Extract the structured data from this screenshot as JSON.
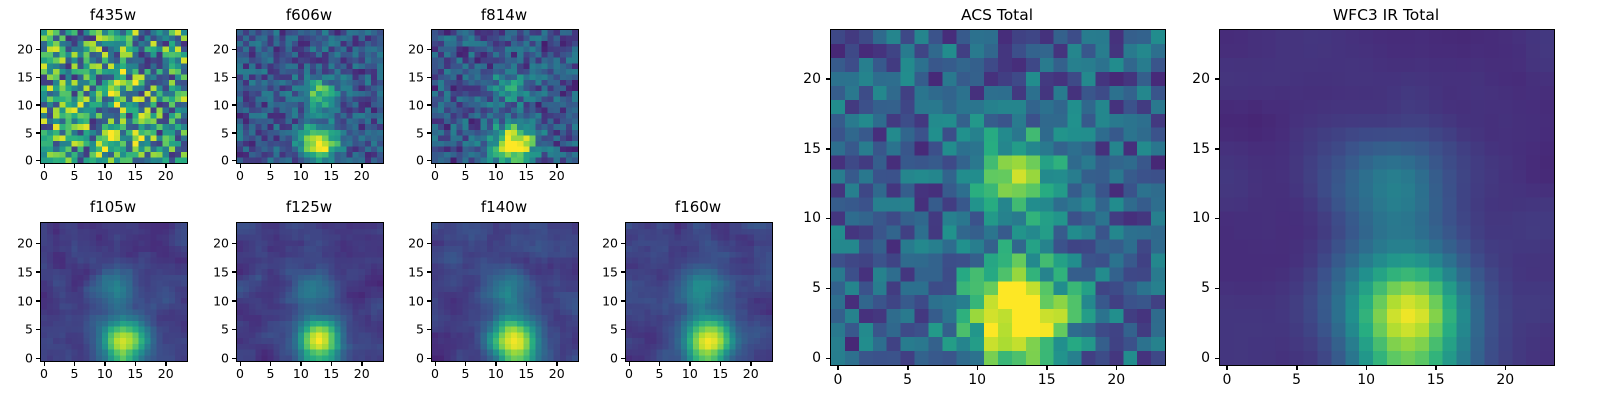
{
  "figure": {
    "description": "Grid of astronomical image cutouts (viridis colormap) in HST filters plus ACS and WFC3 IR stacked totals",
    "colormap": "viridis"
  },
  "chart_data": {
    "type": "heatmap",
    "colormap": "viridis",
    "axis_range": [
      0,
      24
    ],
    "xticks": [
      0,
      5,
      10,
      15,
      20
    ],
    "yticks": [
      0,
      5,
      10,
      15,
      20
    ],
    "grid": 24,
    "panels": [
      {
        "id": "f435w",
        "title": "f435w",
        "seed": 11,
        "base": 0.55,
        "noise": 0.42,
        "smooth": 0,
        "blobs": [
          {
            "x": 12,
            "y": 13,
            "amp": 0.18,
            "sig": 2.2
          },
          {
            "x": 13,
            "y": 4,
            "amp": 0.22,
            "sig": 2.0
          }
        ]
      },
      {
        "id": "f606w",
        "title": "f606w",
        "seed": 22,
        "base": 0.27,
        "noise": 0.17,
        "smooth": 0,
        "blobs": [
          {
            "x": 13,
            "y": 12,
            "amp": 0.46,
            "sig": 2.0
          },
          {
            "x": 13,
            "y": 3,
            "amp": 0.75,
            "sig": 2.2
          }
        ]
      },
      {
        "id": "f814w",
        "title": "f814w",
        "seed": 33,
        "base": 0.26,
        "noise": 0.18,
        "smooth": 0,
        "blobs": [
          {
            "x": 12,
            "y": 13,
            "amp": 0.3,
            "sig": 2.0
          },
          {
            "x": 13,
            "y": 3,
            "amp": 0.82,
            "sig": 2.4
          }
        ]
      },
      {
        "id": "f105w",
        "title": "f105w",
        "seed": 44,
        "base": 0.18,
        "noise": 0.13,
        "smooth": 1,
        "blobs": [
          {
            "x": 12,
            "y": 12,
            "amp": 0.3,
            "sig": 2.2
          },
          {
            "x": 13,
            "y": 3,
            "amp": 0.88,
            "sig": 2.5
          }
        ]
      },
      {
        "id": "f125w",
        "title": "f125w",
        "seed": 55,
        "base": 0.18,
        "noise": 0.13,
        "smooth": 1,
        "blobs": [
          {
            "x": 12,
            "y": 12,
            "amp": 0.28,
            "sig": 2.2
          },
          {
            "x": 13,
            "y": 3,
            "amp": 0.86,
            "sig": 2.5
          }
        ]
      },
      {
        "id": "f140w",
        "title": "f140w",
        "seed": 66,
        "base": 0.2,
        "noise": 0.13,
        "smooth": 1,
        "blobs": [
          {
            "x": 12,
            "y": 12,
            "amp": 0.3,
            "sig": 2.3
          },
          {
            "x": 13,
            "y": 3,
            "amp": 0.88,
            "sig": 2.6
          }
        ]
      },
      {
        "id": "f160w",
        "title": "f160w",
        "seed": 77,
        "base": 0.2,
        "noise": 0.13,
        "smooth": 1,
        "blobs": [
          {
            "x": 12,
            "y": 12,
            "amp": 0.33,
            "sig": 2.4
          },
          {
            "x": 13,
            "y": 3,
            "amp": 0.92,
            "sig": 2.6
          }
        ]
      },
      {
        "id": "acs_total",
        "title": "ACS Total",
        "seed": 88,
        "base": 0.3,
        "noise": 0.19,
        "smooth": 0,
        "blobs": [
          {
            "x": 13,
            "y": 13,
            "amp": 0.5,
            "sig": 2.4
          },
          {
            "x": 13,
            "y": 3,
            "amp": 0.85,
            "sig": 2.6
          }
        ]
      },
      {
        "id": "wfc3_ir_total",
        "title": "WFC3 IR Total",
        "seed": 99,
        "base": 0.14,
        "noise": 0.1,
        "smooth": 2,
        "blobs": [
          {
            "x": 12,
            "y": 12,
            "amp": 0.38,
            "sig": 2.4
          },
          {
            "x": 13,
            "y": 3,
            "amp": 0.98,
            "sig": 2.8
          }
        ]
      }
    ],
    "viridis_anchors": [
      [
        0.0,
        68,
        1,
        84
      ],
      [
        0.125,
        71,
        45,
        123
      ],
      [
        0.25,
        59,
        82,
        139
      ],
      [
        0.375,
        44,
        113,
        142
      ],
      [
        0.5,
        33,
        144,
        141
      ],
      [
        0.625,
        39,
        173,
        129
      ],
      [
        0.75,
        92,
        200,
        99
      ],
      [
        0.875,
        170,
        220,
        50
      ],
      [
        1.0,
        253,
        231,
        37
      ]
    ]
  }
}
